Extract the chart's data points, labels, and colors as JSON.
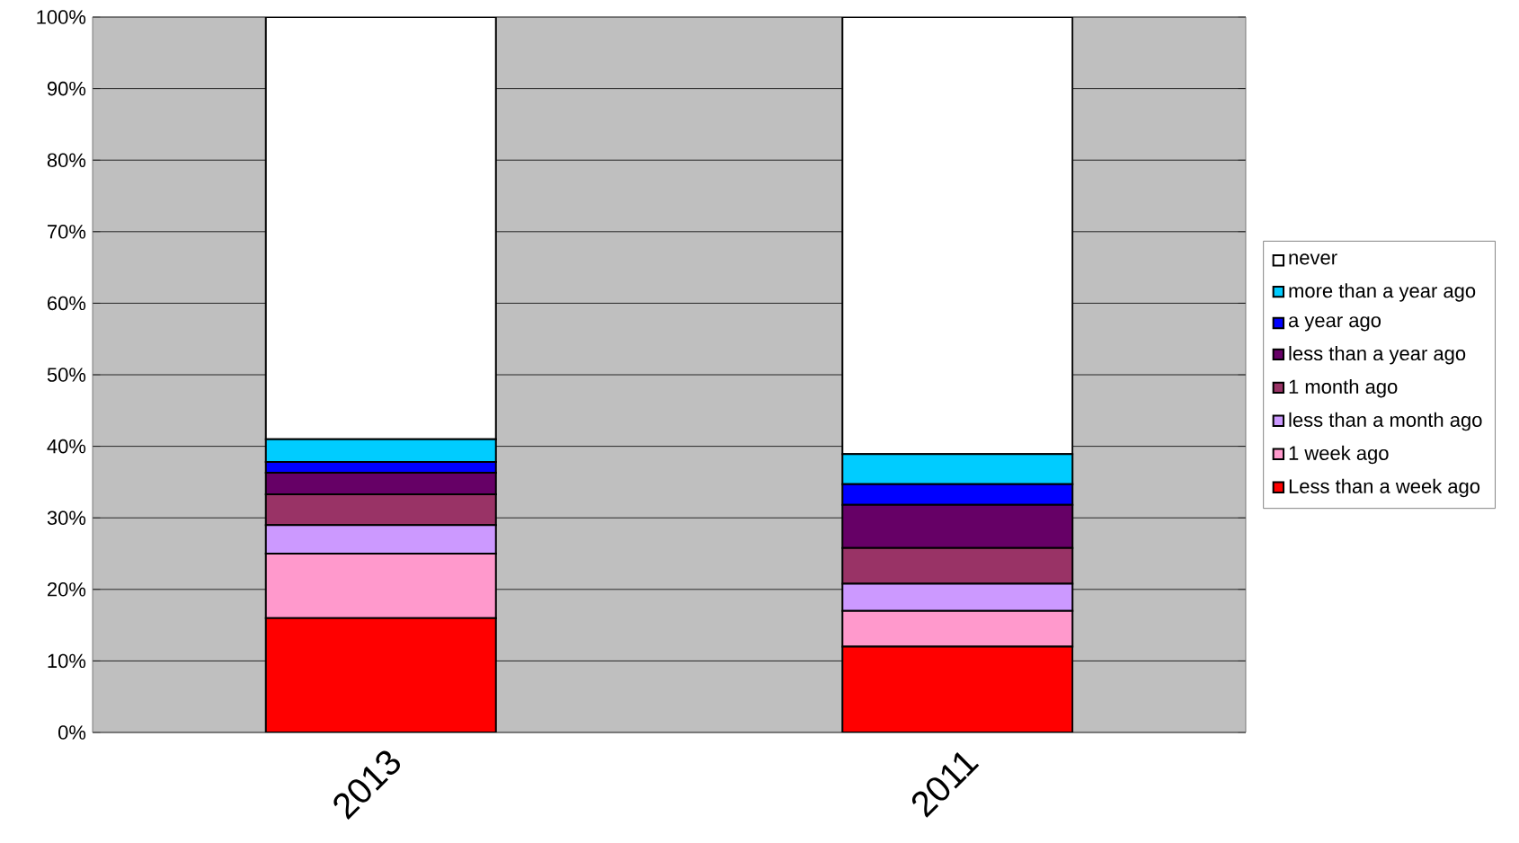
{
  "chart_data": {
    "type": "bar",
    "stacked": true,
    "categories": [
      "2013",
      "2011"
    ],
    "series": [
      {
        "name": "Less than a week ago",
        "color": "#ff0000",
        "values": [
          16,
          12
        ]
      },
      {
        "name": "1 week ago",
        "color": "#ff99cc",
        "values": [
          9,
          5
        ]
      },
      {
        "name": "less than a month ago",
        "color": "#cc99ff",
        "values": [
          4,
          3.8
        ]
      },
      {
        "name": "1 month ago",
        "color": "#993366",
        "values": [
          4.3,
          5
        ]
      },
      {
        "name": "less than a year ago",
        "color": "#660066",
        "values": [
          3,
          6
        ]
      },
      {
        "name": "a year ago",
        "color": "#0000ff",
        "values": [
          1.5,
          2.9
        ]
      },
      {
        "name": "more than a year ago",
        "color": "#00ccff",
        "values": [
          3.2,
          4.2
        ]
      },
      {
        "name": "never",
        "color": "#ffffff",
        "values": [
          59,
          61.1
        ]
      }
    ],
    "ylim": [
      0,
      100
    ],
    "yticks": [
      {
        "value": 0,
        "label": "0%"
      },
      {
        "value": 10,
        "label": "10%"
      },
      {
        "value": 20,
        "label": "20%"
      },
      {
        "value": 30,
        "label": "30%"
      },
      {
        "value": 40,
        "label": "40%"
      },
      {
        "value": 50,
        "label": "50%"
      },
      {
        "value": 60,
        "label": "60%"
      },
      {
        "value": 70,
        "label": "70%"
      },
      {
        "value": 80,
        "label": "80%"
      },
      {
        "value": 90,
        "label": "90%"
      },
      {
        "value": 100,
        "label": "100%"
      }
    ],
    "grid": "y",
    "legend": "right"
  }
}
